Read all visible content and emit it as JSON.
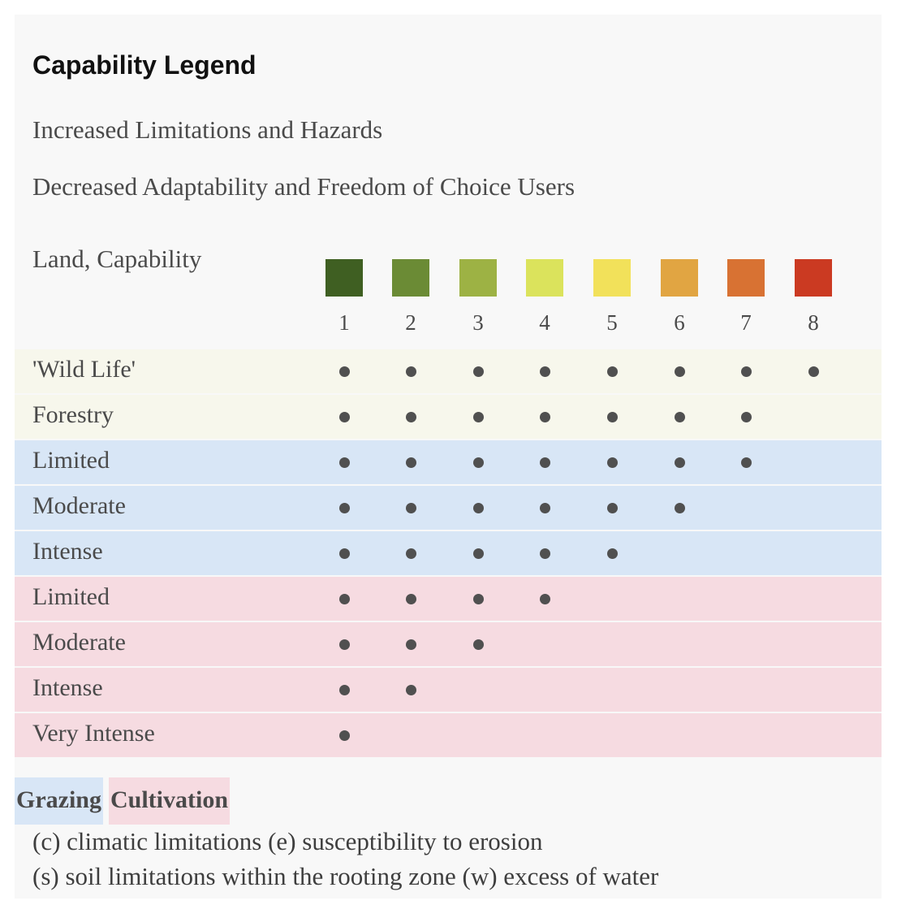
{
  "legend": {
    "title": "Capability Legend",
    "subtitle_1": "Increased Limitations and Hazards",
    "subtitle_2": "Decreased Adaptability and Freedom of Choice Users",
    "land_label": "Land, Capability",
    "classes": [
      {
        "label": "1",
        "color": "#3f5f22"
      },
      {
        "label": "2",
        "color": "#6b8b35"
      },
      {
        "label": "3",
        "color": "#9db244"
      },
      {
        "label": "4",
        "color": "#dbe35c"
      },
      {
        "label": "5",
        "color": "#f2e15a"
      },
      {
        "label": "6",
        "color": "#e1a542"
      },
      {
        "label": "7",
        "color": "#d87233"
      },
      {
        "label": "8",
        "color": "#cb3a22"
      }
    ],
    "row_group_colors": {
      "general": "#f7f7ec",
      "grazing": "#d8e6f6",
      "cultivation": "#f6dbe1"
    },
    "rows": [
      {
        "label": "'Wild Life'",
        "group": "general",
        "max_class": 8
      },
      {
        "label": "Forestry",
        "group": "general",
        "max_class": 7
      },
      {
        "label": "Limited",
        "group": "grazing",
        "max_class": 7
      },
      {
        "label": "Moderate",
        "group": "grazing",
        "max_class": 6
      },
      {
        "label": "Intense",
        "group": "grazing",
        "max_class": 5
      },
      {
        "label": "Limited",
        "group": "cultivation",
        "max_class": 4
      },
      {
        "label": "Moderate",
        "group": "cultivation",
        "max_class": 3
      },
      {
        "label": "Intense",
        "group": "cultivation",
        "max_class": 2
      },
      {
        "label": "Very Intense",
        "group": "cultivation",
        "max_class": 1
      }
    ],
    "key": {
      "grazing": "Grazing",
      "cultivation": "Cultivation"
    },
    "notes": [
      "(c) climatic limitations (e) susceptibility to erosion",
      "(s) soil limitations within the rooting zone (w) excess of water"
    ]
  }
}
